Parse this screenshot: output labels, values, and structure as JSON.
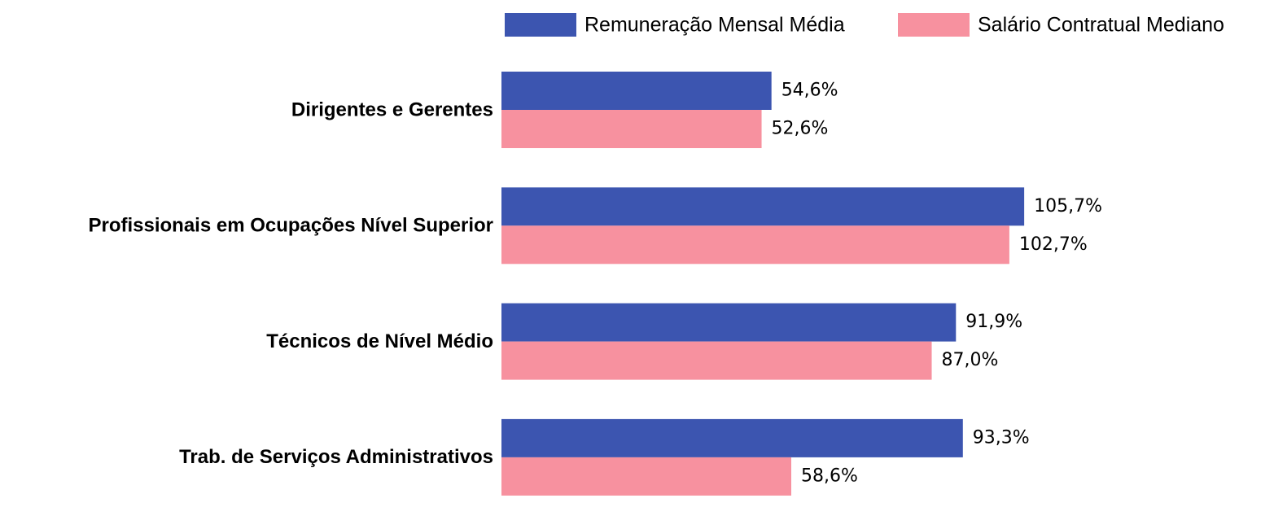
{
  "chart_data": {
    "type": "bar",
    "orientation": "horizontal",
    "categories": [
      "Dirigentes e Gerentes",
      "Profissionais em Ocupações Nível Superior",
      "Técnicos de Nível Médio",
      "Trab. de Serviços Administrativos"
    ],
    "series": [
      {
        "name": "Remuneração Mensal Média",
        "color": "#3c55b0",
        "values": [
          54.6,
          105.7,
          91.9,
          93.3
        ],
        "value_labels": [
          "54,6%",
          "105,7%",
          "91,9%",
          "93,3%"
        ]
      },
      {
        "name": "Salário Contratual Mediano",
        "color": "#f7919f",
        "values": [
          52.6,
          102.7,
          87.0,
          58.6
        ],
        "value_labels": [
          "52,6%",
          "102,7%",
          "87,0%",
          "58,6%"
        ]
      }
    ],
    "legend": "top-right"
  }
}
